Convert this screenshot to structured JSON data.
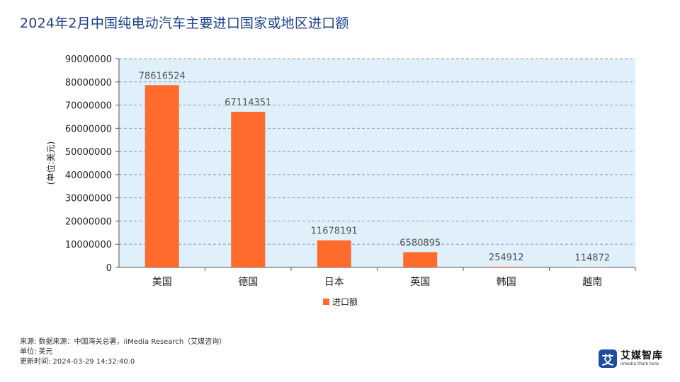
{
  "page": {
    "title": "2024年2月中国纯电动汽车主要进口国家或地区进口额"
  },
  "chart_data": {
    "type": "bar",
    "title": "2024年2月中国纯电动汽车主要进口国家或地区进口额",
    "categories": [
      "美国",
      "德国",
      "日本",
      "英国",
      "韩国",
      "越南"
    ],
    "series": [
      {
        "name": "进口额",
        "values": [
          78616524,
          67114351,
          11678191,
          6580895,
          254912,
          114872
        ]
      }
    ],
    "data_labels": [
      "78616524",
      "67114351",
      "11678191",
      "6580895",
      "254912",
      "114872"
    ],
    "ylabel": "(单位:美元)",
    "ylim": [
      0,
      90000000
    ],
    "yticks": [
      "0",
      "10000000",
      "20000000",
      "30000000",
      "40000000",
      "50000000",
      "60000000",
      "70000000",
      "80000000",
      "90000000"
    ],
    "grid": true,
    "legend_position": "bottom",
    "colors": {
      "bar": "#ff6b2c",
      "plot_bg": "#dff0fb",
      "grid": "#8a9bb0",
      "axis": "#555555"
    }
  },
  "footer": {
    "source": "来源: 数据来源：中国海关总署，iiMedia Research（艾媒咨询）",
    "unit": "单位: 美元",
    "updated": "更新时间: 2024-03-29 14:32:40.0"
  },
  "brand": {
    "logo_char": "艾",
    "name_cn": "艾媒智库",
    "name_en": "iimedia think tank"
  }
}
